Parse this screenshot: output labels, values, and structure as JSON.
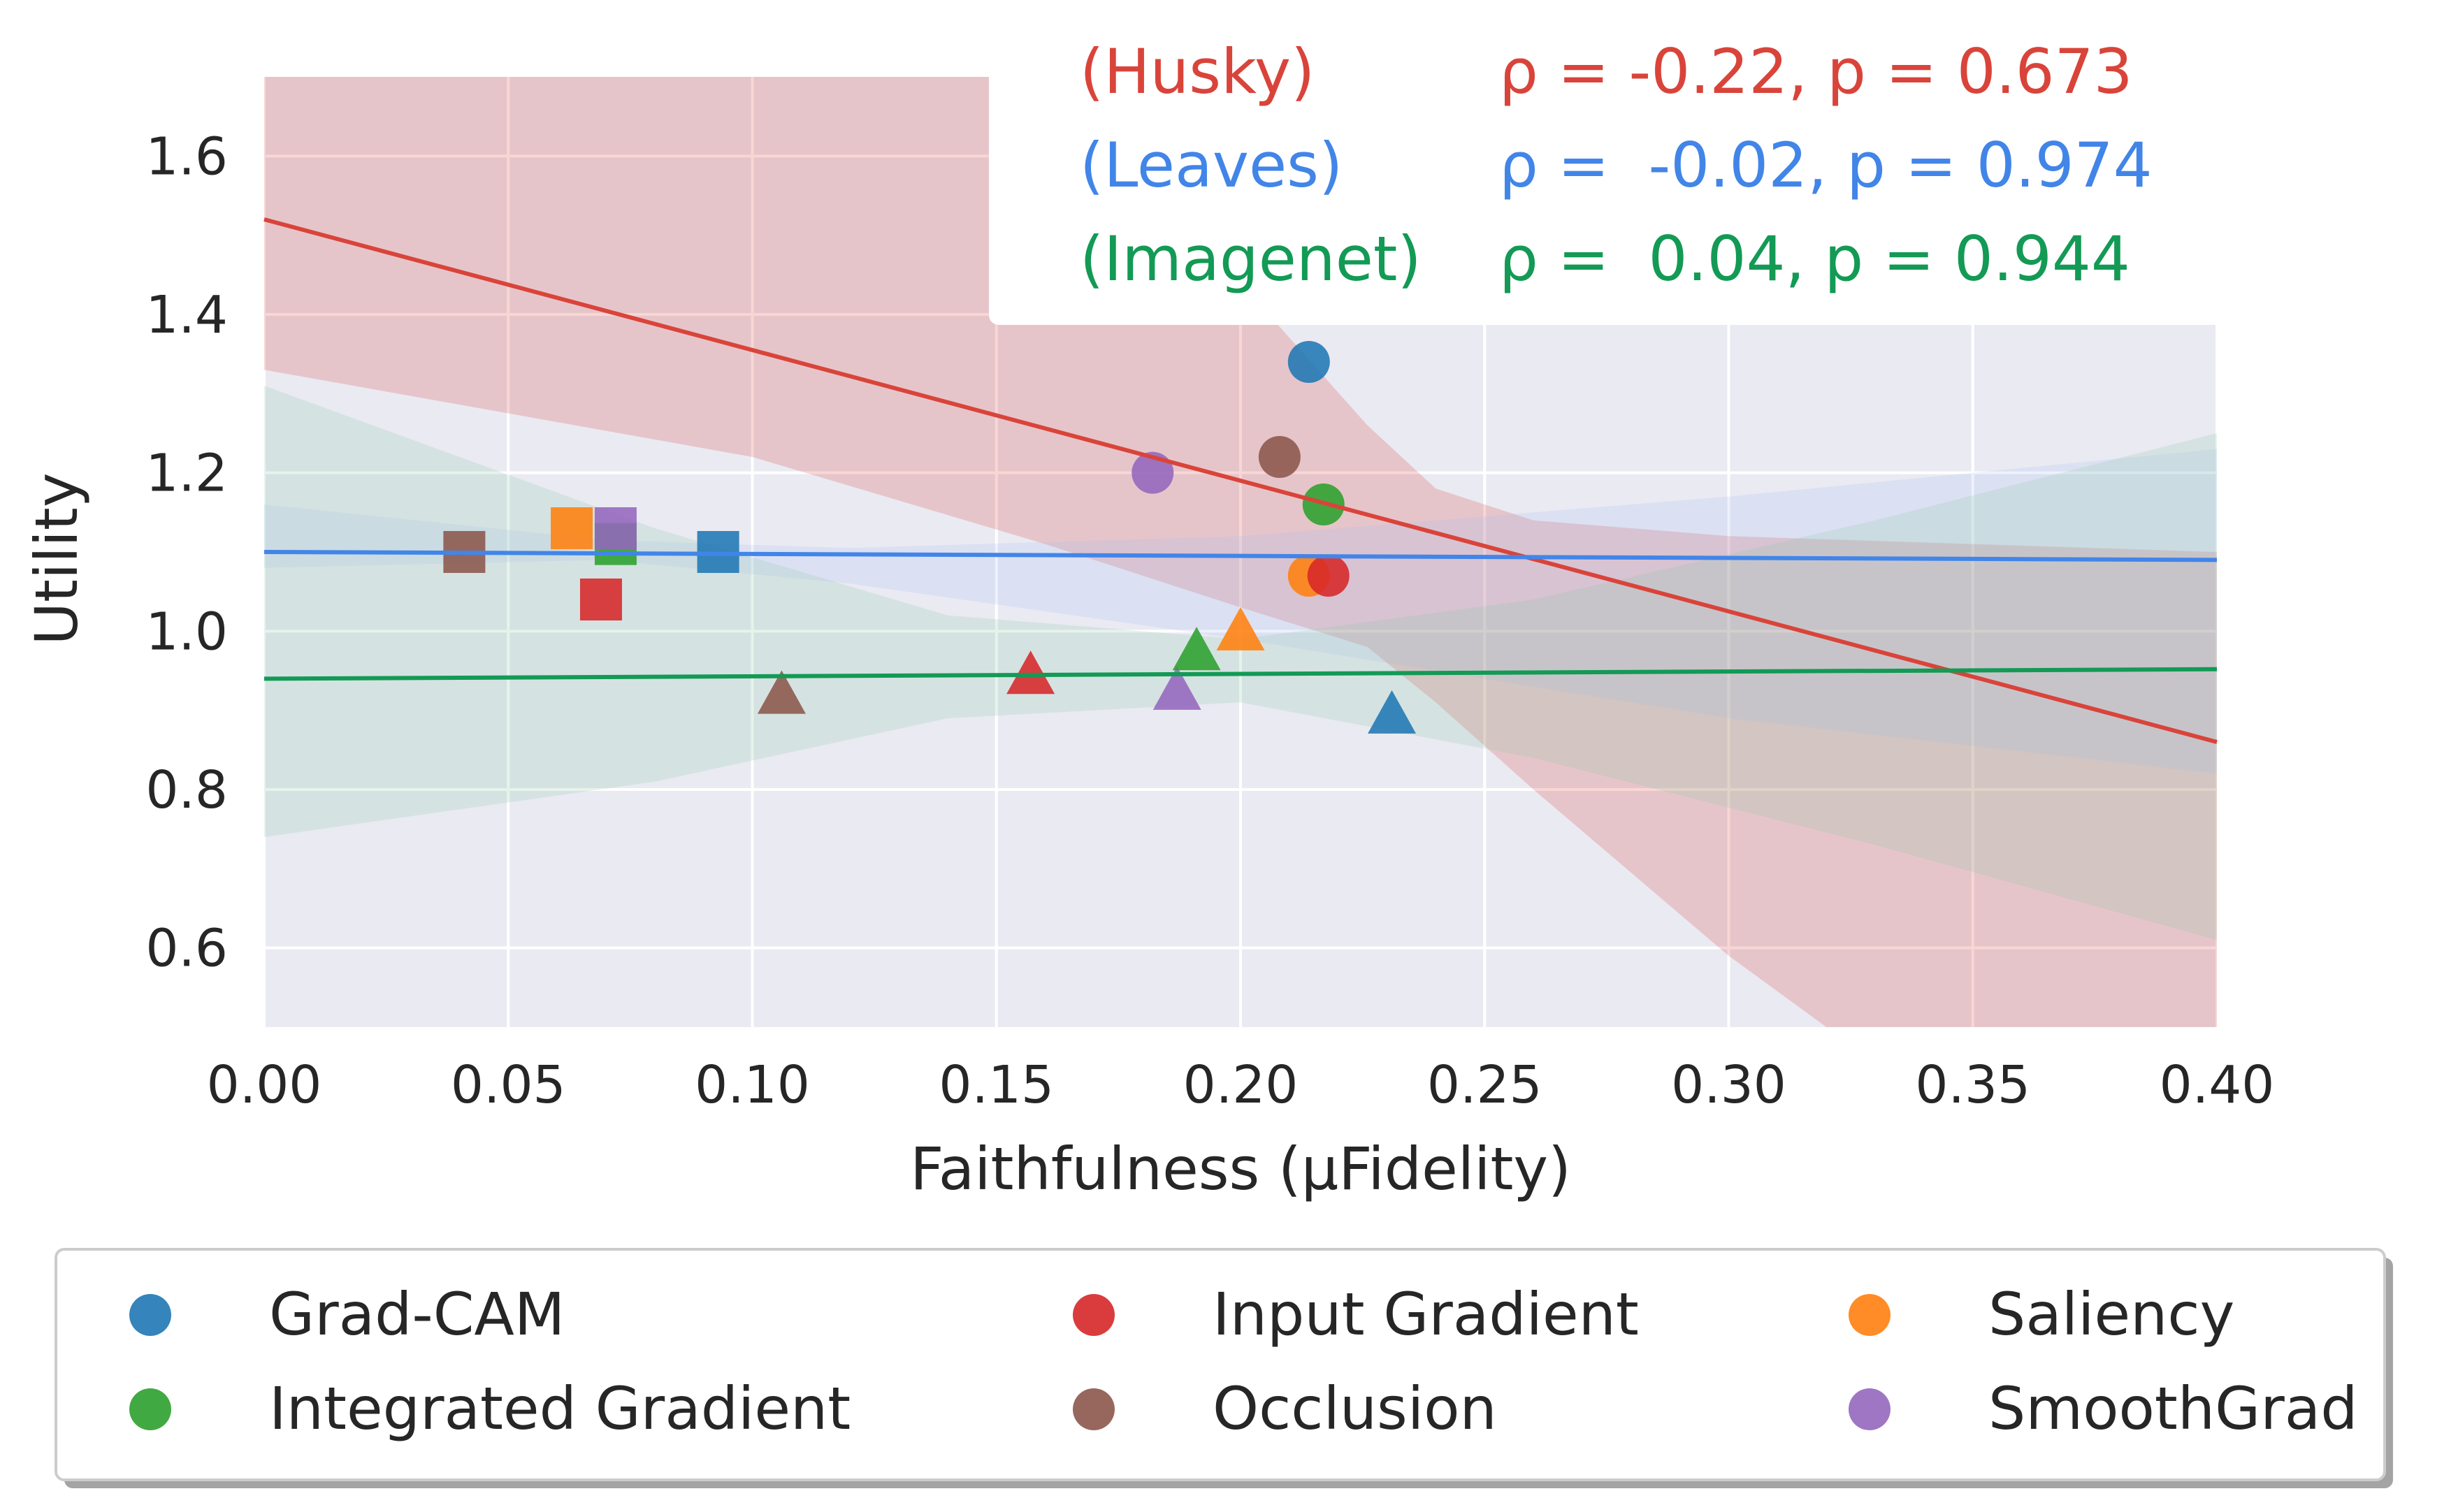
{
  "chart_data": {
    "type": "scatter",
    "title": "",
    "xlabel": "Faithfulness (μFidelity)",
    "ylabel": "Utility",
    "xlim": [
      0.0,
      0.4
    ],
    "ylim": [
      0.5,
      1.7
    ],
    "xticks": [
      0.0,
      0.05,
      0.1,
      0.15,
      0.2,
      0.25,
      0.3,
      0.35,
      0.4
    ],
    "xtick_labels": [
      "0.00",
      "0.05",
      "0.10",
      "0.15",
      "0.20",
      "0.25",
      "0.30",
      "0.35",
      "0.40"
    ],
    "yticks": [
      0.6,
      0.8,
      1.0,
      1.2,
      1.4,
      1.6
    ],
    "ytick_labels": [
      "0.6",
      "0.8",
      "1.0",
      "1.2",
      "1.4",
      "1.6"
    ],
    "grid": true,
    "method_colors": {
      "Grad-CAM": "#1f77b4",
      "Integrated Gradient": "#2ca02c",
      "Input Gradient": "#d62728",
      "Occlusion": "#8c564b",
      "Saliency": "#ff7f0e",
      "SmoothGrad": "#9467bd"
    },
    "datasets": [
      {
        "name": "Husky",
        "label": "(Husky)",
        "stat": "ρ = -0.22, p = 0.673",
        "marker": "circle",
        "color": "#d9443a",
        "band_color": "#d9443a",
        "fit": [
          [
            0.0,
            1.52
          ],
          [
            0.4,
            0.86
          ]
        ],
        "band": {
          "upper": [
            [
              0.0,
              1.75
            ],
            [
              0.145,
              1.75
            ],
            [
              0.2,
              1.44
            ],
            [
              0.226,
              1.26
            ],
            [
              0.24,
              1.18
            ],
            [
              0.26,
              1.14
            ],
            [
              0.3,
              1.12
            ],
            [
              0.4,
              1.1
            ]
          ],
          "lower": [
            [
              0.0,
              1.33
            ],
            [
              0.1,
              1.22
            ],
            [
              0.16,
              1.11
            ],
            [
              0.2,
              1.03
            ],
            [
              0.226,
              0.98
            ],
            [
              0.24,
              0.91
            ],
            [
              0.26,
              0.8
            ],
            [
              0.3,
              0.59
            ],
            [
              0.32,
              0.5
            ],
            [
              0.4,
              0.5
            ]
          ]
        },
        "points": [
          {
            "method": "Grad-CAM",
            "x": 0.214,
            "y": 1.34
          },
          {
            "method": "Occlusion",
            "x": 0.208,
            "y": 1.22
          },
          {
            "method": "SmoothGrad",
            "x": 0.182,
            "y": 1.2
          },
          {
            "method": "Integrated Gradient",
            "x": 0.217,
            "y": 1.16
          },
          {
            "method": "Saliency",
            "x": 0.214,
            "y": 1.07
          },
          {
            "method": "Input Gradient",
            "x": 0.218,
            "y": 1.07
          }
        ]
      },
      {
        "name": "Leaves",
        "label": "(Leaves)",
        "stat": "ρ =  -0.02, p = 0.974",
        "marker": "square",
        "color": "#4285e8",
        "band_color": "#a9bff0",
        "fit": [
          [
            0.0,
            1.1
          ],
          [
            0.4,
            1.09
          ]
        ],
        "band": {
          "upper": [
            [
              0.0,
              1.16
            ],
            [
              0.07,
              1.115
            ],
            [
              0.12,
              1.105
            ],
            [
              0.2,
              1.12
            ],
            [
              0.3,
              1.17
            ],
            [
              0.4,
              1.23
            ]
          ],
          "lower": [
            [
              0.0,
              1.08
            ],
            [
              0.07,
              1.09
            ],
            [
              0.12,
              1.06
            ],
            [
              0.2,
              0.99
            ],
            [
              0.3,
              0.89
            ],
            [
              0.4,
              0.82
            ]
          ]
        },
        "points": [
          {
            "method": "Occlusion",
            "x": 0.041,
            "y": 1.1
          },
          {
            "method": "Saliency",
            "x": 0.063,
            "y": 1.13
          },
          {
            "method": "Integrated Gradient",
            "x": 0.072,
            "y": 1.11
          },
          {
            "method": "SmoothGrad",
            "x": 0.072,
            "y": 1.13
          },
          {
            "method": "Input Gradient",
            "x": 0.069,
            "y": 1.04
          },
          {
            "method": "Grad-CAM",
            "x": 0.093,
            "y": 1.1
          }
        ]
      },
      {
        "name": "Imagenet",
        "label": "(Imagenet)",
        "stat": "ρ =  0.04, p = 0.944",
        "marker": "triangle",
        "color": "#139a55",
        "band_color": "#8fc7a8",
        "fit": [
          [
            0.0,
            0.94
          ],
          [
            0.4,
            0.952
          ]
        ],
        "band": {
          "upper": [
            [
              0.0,
              1.31
            ],
            [
              0.08,
              1.13
            ],
            [
              0.14,
              1.02
            ],
            [
              0.2,
              0.99
            ],
            [
              0.26,
              1.04
            ],
            [
              0.33,
              1.14
            ],
            [
              0.4,
              1.25
            ]
          ],
          "lower": [
            [
              0.0,
              0.74
            ],
            [
              0.08,
              0.81
            ],
            [
              0.14,
              0.89
            ],
            [
              0.2,
              0.91
            ],
            [
              0.26,
              0.84
            ],
            [
              0.33,
              0.73
            ],
            [
              0.4,
              0.61
            ]
          ]
        },
        "points": [
          {
            "method": "Occlusion",
            "x": 0.106,
            "y": 0.92
          },
          {
            "method": "Input Gradient",
            "x": 0.157,
            "y": 0.945
          },
          {
            "method": "SmoothGrad",
            "x": 0.187,
            "y": 0.925
          },
          {
            "method": "Integrated Gradient",
            "x": 0.191,
            "y": 0.975
          },
          {
            "method": "Saliency",
            "x": 0.2,
            "y": 1.0
          },
          {
            "method": "Grad-CAM",
            "x": 0.231,
            "y": 0.895
          }
        ]
      }
    ],
    "legend": {
      "placement": "bottom",
      "entries": [
        {
          "label": "Grad-CAM",
          "color": "#1f77b4"
        },
        {
          "label": "Input Gradient",
          "color": "#d62728"
        },
        {
          "label": "Saliency",
          "color": "#ff7f0e"
        },
        {
          "label": "Integrated Gradient",
          "color": "#2ca02c"
        },
        {
          "label": "Occlusion",
          "color": "#8c564b"
        },
        {
          "label": "SmoothGrad",
          "color": "#9467bd"
        }
      ]
    }
  }
}
